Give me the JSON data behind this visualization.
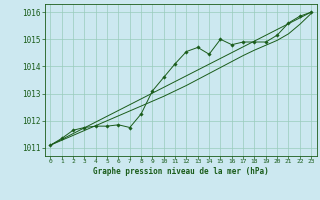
{
  "title": "Graphe pression niveau de la mer (hPa)",
  "bg_color": "#cce8f0",
  "grid_color": "#99ccbb",
  "line_color": "#1a5c1a",
  "marker_color": "#1a5c1a",
  "xlim": [
    -0.5,
    23.5
  ],
  "ylim": [
    1010.7,
    1016.3
  ],
  "xticks": [
    0,
    1,
    2,
    3,
    4,
    5,
    6,
    7,
    8,
    9,
    10,
    11,
    12,
    13,
    14,
    15,
    16,
    17,
    18,
    19,
    20,
    21,
    22,
    23
  ],
  "yticks": [
    1011,
    1012,
    1013,
    1014,
    1015,
    1016
  ],
  "data_main": [
    [
      0,
      1011.1
    ],
    [
      1,
      1011.35
    ],
    [
      2,
      1011.65
    ],
    [
      3,
      1011.75
    ],
    [
      4,
      1011.8
    ],
    [
      5,
      1011.8
    ],
    [
      6,
      1011.85
    ],
    [
      7,
      1011.75
    ],
    [
      8,
      1012.25
    ],
    [
      9,
      1013.1
    ],
    [
      10,
      1013.6
    ],
    [
      11,
      1014.1
    ],
    [
      12,
      1014.55
    ],
    [
      13,
      1014.7
    ],
    [
      14,
      1014.45
    ],
    [
      15,
      1015.0
    ],
    [
      16,
      1014.8
    ],
    [
      17,
      1014.9
    ],
    [
      18,
      1014.9
    ],
    [
      19,
      1014.9
    ],
    [
      20,
      1015.15
    ],
    [
      21,
      1015.6
    ],
    [
      22,
      1015.85
    ],
    [
      23,
      1016.0
    ]
  ],
  "data_trend": [
    [
      0,
      1011.1
    ],
    [
      23,
      1016.0
    ]
  ],
  "data_smooth": [
    [
      0,
      1011.1
    ],
    [
      1,
      1011.28
    ],
    [
      2,
      1011.46
    ],
    [
      3,
      1011.64
    ],
    [
      4,
      1011.82
    ],
    [
      5,
      1012.0
    ],
    [
      6,
      1012.18
    ],
    [
      7,
      1012.36
    ],
    [
      8,
      1012.54
    ],
    [
      9,
      1012.72
    ],
    [
      10,
      1012.9
    ],
    [
      11,
      1013.1
    ],
    [
      12,
      1013.3
    ],
    [
      13,
      1013.52
    ],
    [
      14,
      1013.74
    ],
    [
      15,
      1013.96
    ],
    [
      16,
      1014.18
    ],
    [
      17,
      1014.4
    ],
    [
      18,
      1014.6
    ],
    [
      19,
      1014.78
    ],
    [
      20,
      1014.96
    ],
    [
      21,
      1015.2
    ],
    [
      22,
      1015.55
    ],
    [
      23,
      1015.95
    ]
  ]
}
